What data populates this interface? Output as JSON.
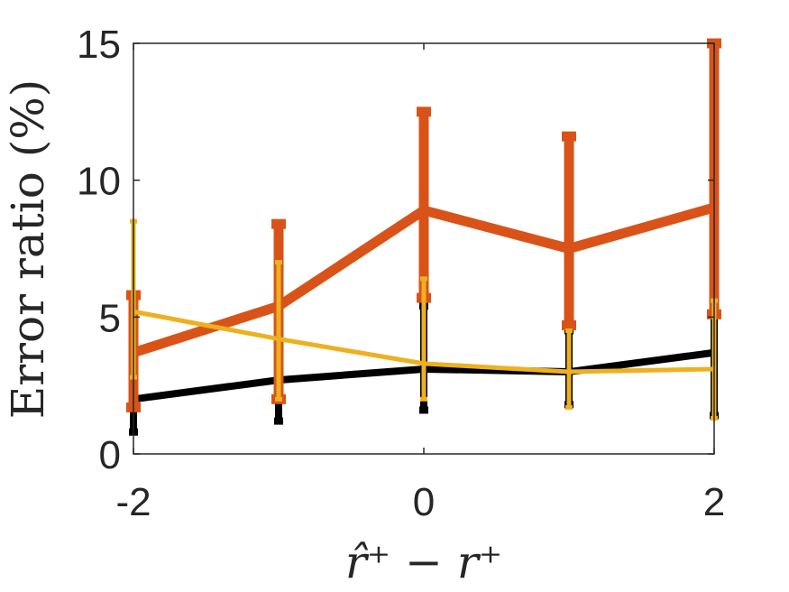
{
  "chart_data": {
    "type": "line",
    "title": "",
    "xlabel": "r̂⁺ − r⁺",
    "ylabel": "Error ratio (%)",
    "x": [
      -2,
      -1,
      0,
      1,
      2
    ],
    "xlim": [
      -2,
      2
    ],
    "ylim": [
      0,
      15
    ],
    "xticks": [
      "-2",
      "0",
      "2"
    ],
    "yticks": [
      "0",
      "5",
      "10",
      "15"
    ],
    "grid": false,
    "legend": "none",
    "series": [
      {
        "color": "#000000",
        "values": [
          2.0,
          2.7,
          3.1,
          3.0,
          3.7
        ],
        "err_low": [
          0.8,
          1.2,
          1.6,
          1.8,
          1.4
        ],
        "err_high": [
          3.6,
          3.9,
          5.4,
          4.5,
          5.9
        ]
      },
      {
        "color": "#D95319",
        "values": [
          3.7,
          5.4,
          8.9,
          7.5,
          9.0
        ],
        "err_low": [
          1.7,
          2.0,
          5.7,
          4.7,
          5.1
        ],
        "err_high": [
          5.8,
          8.4,
          12.5,
          11.6,
          15.0
        ]
      },
      {
        "color": "#EDB120",
        "values": [
          5.2,
          4.2,
          3.3,
          3.0,
          3.1
        ],
        "err_low": [
          2.8,
          2.0,
          2.0,
          1.7,
          1.3
        ],
        "err_high": [
          8.5,
          7.0,
          6.4,
          4.5,
          5.6
        ]
      }
    ]
  }
}
